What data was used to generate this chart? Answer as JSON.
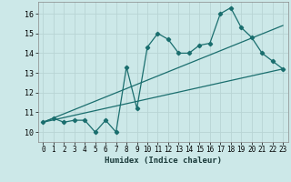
{
  "xlabel": "Humidex (Indice chaleur)",
  "background_color": "#cce8e8",
  "grid_color": "#b8d4d4",
  "line_color": "#1a6e6e",
  "xlim": [
    -0.5,
    23.5
  ],
  "ylim": [
    9.5,
    16.6
  ],
  "xticks": [
    0,
    1,
    2,
    3,
    4,
    5,
    6,
    7,
    8,
    9,
    10,
    11,
    12,
    13,
    14,
    15,
    16,
    17,
    18,
    19,
    20,
    21,
    22,
    23
  ],
  "yticks": [
    10,
    11,
    12,
    13,
    14,
    15,
    16
  ],
  "series1_x": [
    0,
    1,
    2,
    3,
    4,
    5,
    6,
    7,
    8,
    9,
    10,
    11,
    12,
    13,
    14,
    15,
    16,
    17,
    18,
    19,
    20,
    21,
    22,
    23
  ],
  "series1_y": [
    10.5,
    10.7,
    10.5,
    10.6,
    10.6,
    10.0,
    10.6,
    10.0,
    13.3,
    11.2,
    14.3,
    15.0,
    14.7,
    14.0,
    14.0,
    14.4,
    14.5,
    16.0,
    16.3,
    15.3,
    14.8,
    14.0,
    13.6,
    13.2
  ],
  "trend1_x": [
    0,
    23
  ],
  "trend1_y": [
    10.5,
    13.2
  ],
  "trend2_x": [
    0,
    23
  ],
  "trend2_y": [
    10.5,
    15.4
  ],
  "marker_size": 2.2,
  "line_width": 0.9,
  "tick_fontsize": 5.5,
  "xlabel_fontsize": 6.5
}
